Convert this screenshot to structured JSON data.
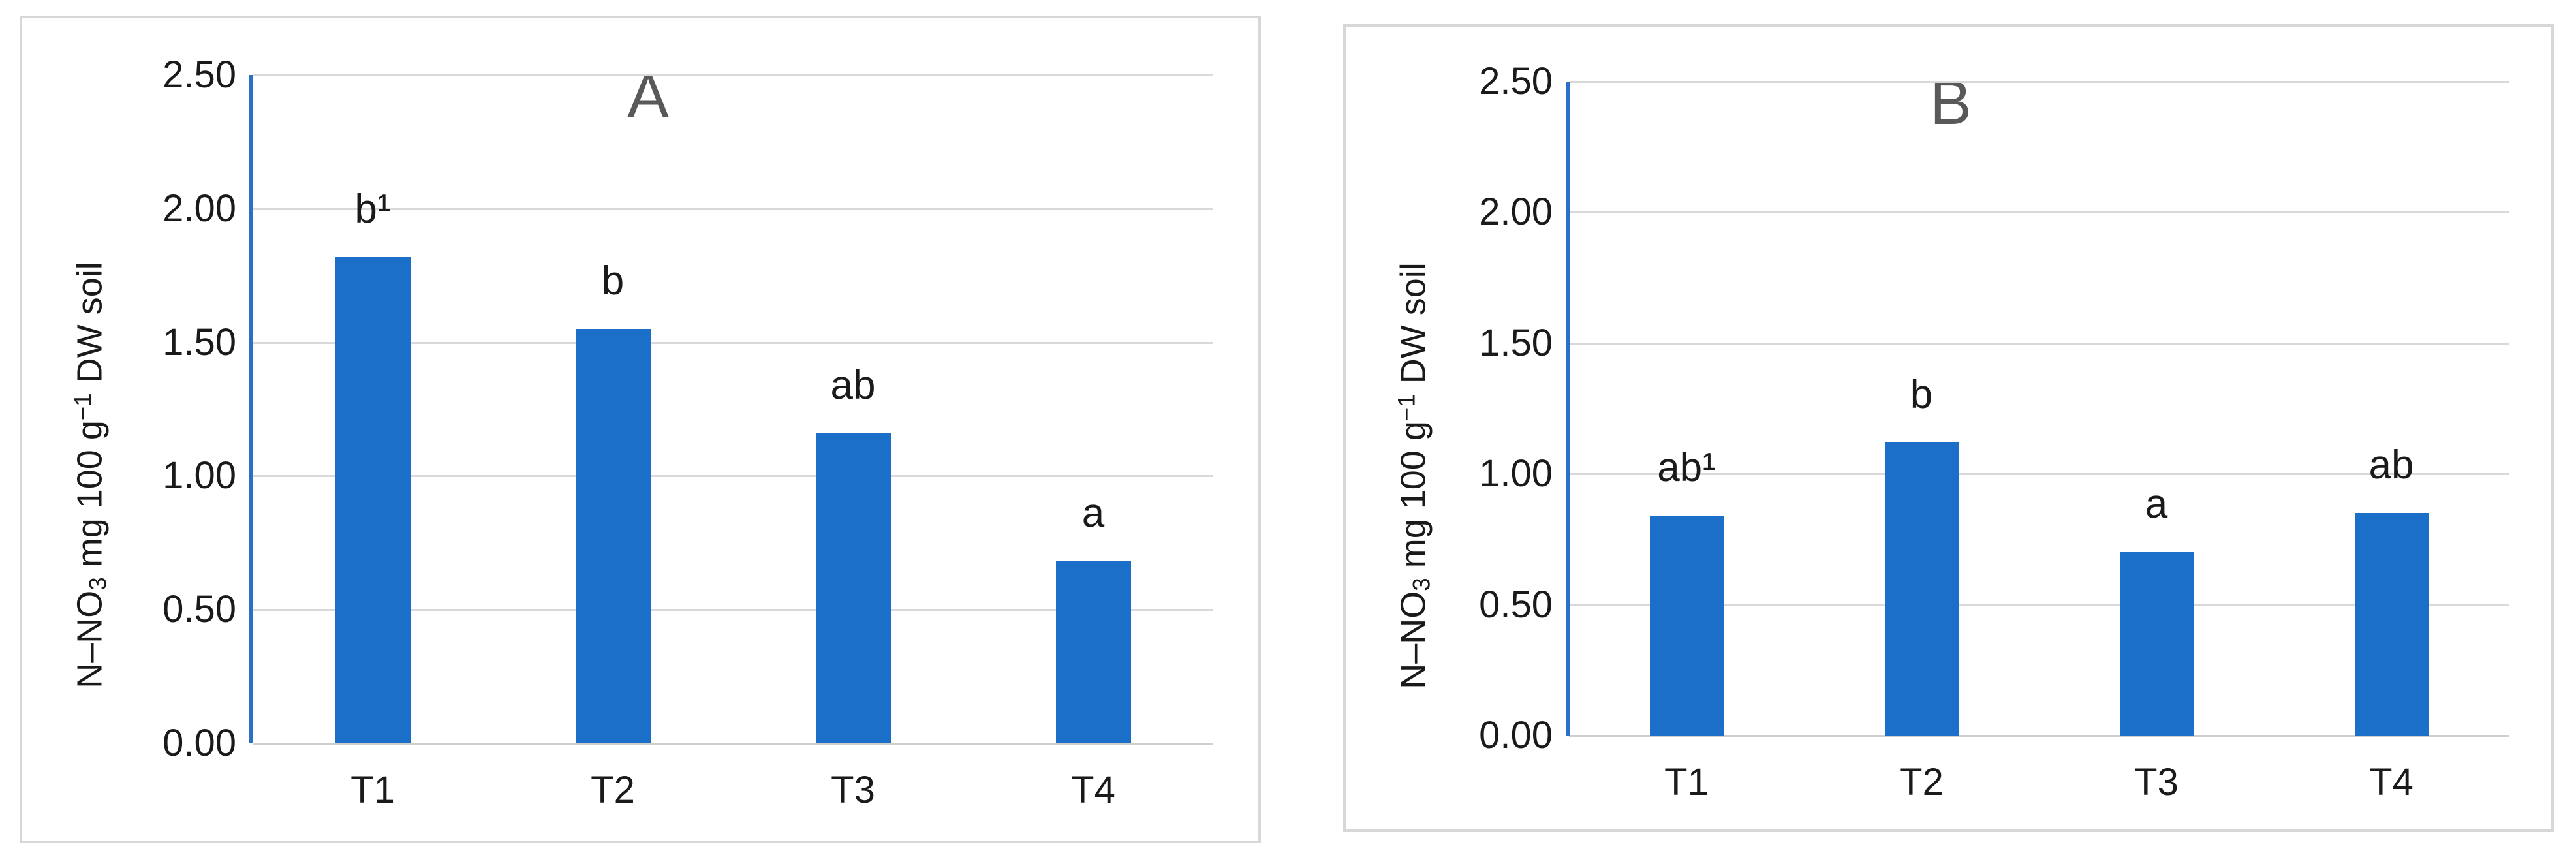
{
  "figure": {
    "background": "#ffffff",
    "panel_border_color": "#d7d7d7",
    "bar_color": "#1c6fc8",
    "axis_line_color": "#2a70c8",
    "gridline_color": "#d9d9d9",
    "title_color": "#595959",
    "text_color": "#1a1a1a"
  },
  "chart_data": [
    {
      "type": "bar",
      "panel_label": "A",
      "categories": [
        "T1",
        "T2",
        "T3",
        "T4"
      ],
      "values": [
        1.82,
        1.55,
        1.16,
        0.68
      ],
      "bar_labels": [
        "b¹",
        "b",
        "ab",
        "a"
      ],
      "ytick_labels": [
        "0.00",
        "0.50",
        "1.00",
        "1.50",
        "2.00",
        "2.50"
      ],
      "ylim": [
        0,
        2.5
      ],
      "ytick_step": 0.5,
      "grid": "horizontal",
      "legend": "none",
      "xlabel": "",
      "ylabel": "N–NO₃ mg 100 g⁻¹ DW soil",
      "ylabel_parts": {
        "p1": "N–NO",
        "sub": "3",
        "p2": " mg 100 g",
        "sup": "−1",
        "p3": " DW soil"
      }
    },
    {
      "type": "bar",
      "panel_label": "B",
      "categories": [
        "T1",
        "T2",
        "T3",
        "T4"
      ],
      "values": [
        0.84,
        1.12,
        0.7,
        0.85
      ],
      "bar_labels": [
        "ab¹",
        "b",
        "a",
        "ab"
      ],
      "ytick_labels": [
        "0.00",
        "0.50",
        "1.00",
        "1.50",
        "2.00",
        "2.50"
      ],
      "ylim": [
        0,
        2.5
      ],
      "ytick_step": 0.5,
      "grid": "horizontal",
      "legend": "none",
      "xlabel": "",
      "ylabel": "N–NO₃ mg 100 g⁻¹ DW soil",
      "ylabel_parts": {
        "p1": "N–NO",
        "sub": "3",
        "p2": " mg 100 g",
        "sup": "−1",
        "p3": " DW soil"
      }
    }
  ]
}
